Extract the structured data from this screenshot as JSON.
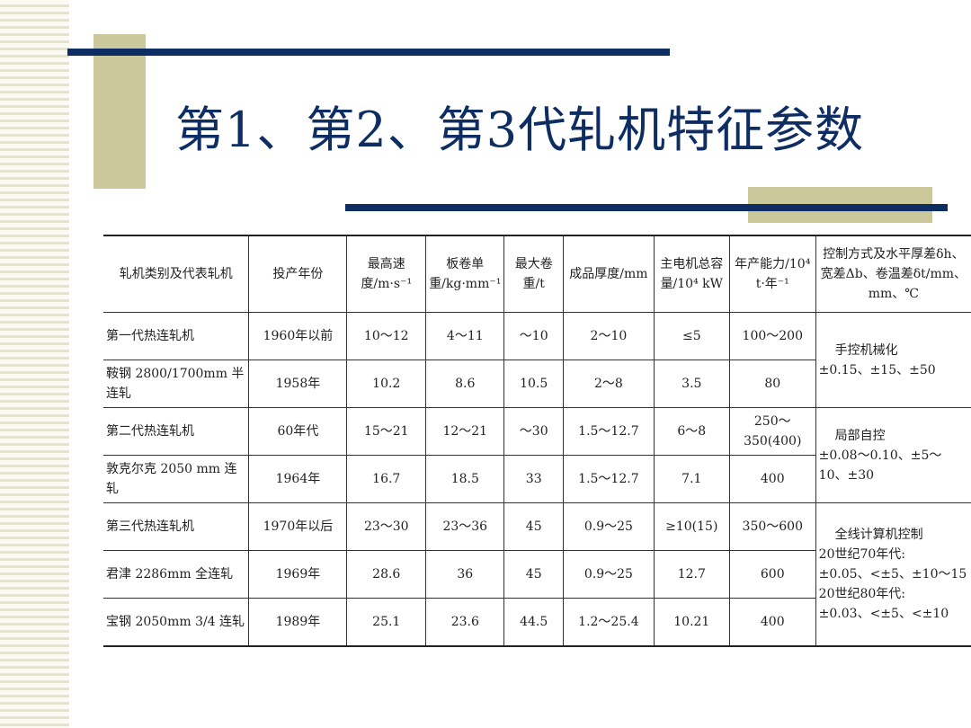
{
  "title": "第1、第2、第3代轧机特征参数",
  "table": {
    "headers": [
      "轧机类别及代表轧机",
      "投产年份",
      "最高速度/m·s⁻¹",
      "板卷单重/kg·mm⁻¹",
      "最大卷重/t",
      "成品厚度/mm",
      "主电机总容量/10⁴ kW",
      "年产能力/10⁴ t·年⁻¹",
      "控制方式及水平厚差δh、宽差Δb、卷温差δt/mm、mm、℃"
    ],
    "rows": [
      [
        "第一代热连轧机",
        "1960年以前",
        "10～12",
        "4～11",
        "～10",
        "2～10",
        "≤5",
        "100～200"
      ],
      [
        "鞍钢 2800/1700mm 半连轧",
        "1958年",
        "10.2",
        "8.6",
        "10.5",
        "2～8",
        "3.5",
        "80"
      ],
      [
        "第二代热连轧机",
        "60年代",
        "15～21",
        "12～21",
        "～30",
        "1.5～12.7",
        "6～8",
        "250～350(400)"
      ],
      [
        "敦克尔克 2050 mm 连轧",
        "1964年",
        "16.7",
        "18.5",
        "33",
        "1.5～12.7",
        "7.1",
        "400"
      ],
      [
        "第三代热连轧机",
        "1970年以后",
        "23～30",
        "23～36",
        "45",
        "0.9～25",
        "≥10(15)",
        "350～600"
      ],
      [
        "君津 2286mm 全连轧",
        "1969年",
        "28.6",
        "36",
        "45",
        "0.9～25",
        "12.7",
        "600"
      ],
      [
        "宝钢 2050mm 3/4 连轧",
        "1989年",
        "25.1",
        "23.6",
        "44.5",
        "1.2～25.4",
        "10.21",
        "400"
      ]
    ],
    "control": [
      [
        "手控机械化",
        "±0.15、±15、±50"
      ],
      [
        "局部自控",
        "±0.08～0.10、±5～10、±30"
      ],
      [
        "全线计算机控制",
        "20世纪70年代:",
        "±0.05、<±5、±10～15",
        "20世纪80年代:",
        "±0.03、<±5、<±10"
      ]
    ]
  }
}
